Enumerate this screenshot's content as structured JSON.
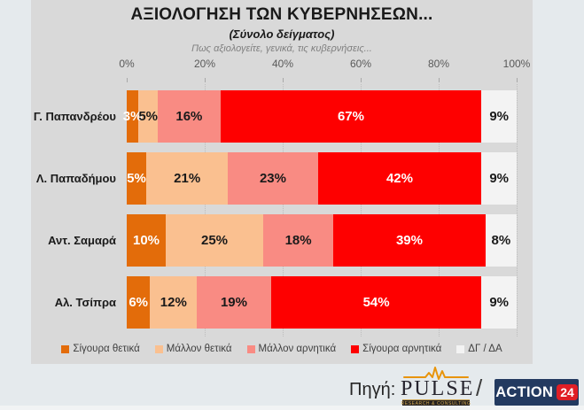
{
  "title": "ΑΞΙΟΛΟΓΗΣΗ ΤΩΝ ΚΥΒΕΡΝΗΣΕΩΝ...",
  "subtitle": "(Σύνολο δείγματος)",
  "question": "Πως αξιολογείτε, γενικά, τις κυβερνήσεις...",
  "chart_data": {
    "type": "bar",
    "orientation": "horizontal",
    "stacked": true,
    "grid": "vertical-dotted",
    "legend_position": "bottom",
    "xlim": [
      0,
      100
    ],
    "x_ticks": [
      "0%",
      "20%",
      "40%",
      "60%",
      "80%",
      "100%"
    ],
    "value_suffix": "%",
    "categories": [
      "Γ. Παπανδρέου",
      "Λ. Παπαδήμου",
      "Αντ. Σαμαρά",
      "Αλ. Τσίπρα"
    ],
    "series": [
      {
        "name": "Σίγουρα θετικά",
        "color": "#e36c0a",
        "label_color": "#ffffff",
        "values": [
          3,
          5,
          10,
          6
        ]
      },
      {
        "name": "Μάλλον θετικά",
        "color": "#fac090",
        "label_color": "#1a1a1a",
        "values": [
          5,
          21,
          25,
          12
        ]
      },
      {
        "name": "Μάλλον αρνητικά",
        "color": "#f98b83",
        "label_color": "#1a1a1a",
        "values": [
          16,
          23,
          18,
          19
        ]
      },
      {
        "name": "Σίγουρα αρνητικά",
        "color": "#fe0000",
        "label_color": "#ffffff",
        "values": [
          67,
          42,
          39,
          54
        ]
      },
      {
        "name": "ΔΓ / ΔΑ",
        "color": "#f3f3f3",
        "label_color": "#1a1a1a",
        "values": [
          9,
          9,
          8,
          9
        ]
      }
    ]
  },
  "footer": {
    "source_label": "Πηγή:",
    "separator": "/",
    "pulse_logo": {
      "name": "PULSE",
      "tagline": "RESEARCH & CONSULTING"
    },
    "action_logo": {
      "name": "ACTION",
      "badge": "24"
    }
  },
  "colors": {
    "panel_background": "#d9d9d9",
    "page_background": "#e5eaed",
    "action_logo_background": "#233a60",
    "action_badge_background": "#e01e25",
    "pulse_accent": "#e8940a"
  }
}
